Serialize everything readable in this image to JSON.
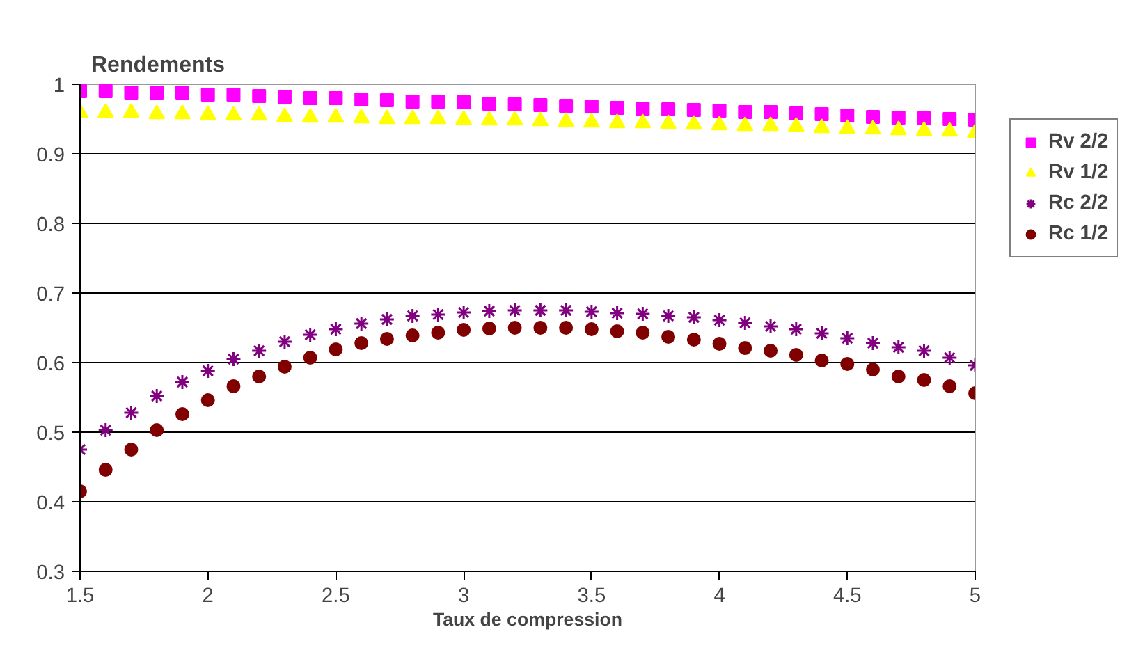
{
  "chart_data": {
    "type": "scatter",
    "title": "Rendements",
    "xlabel": "Taux de compression",
    "x": [
      1.5,
      1.6,
      1.7,
      1.8,
      1.9,
      2.0,
      2.1,
      2.2,
      2.3,
      2.4,
      2.5,
      2.6,
      2.7,
      2.8,
      2.9,
      3.0,
      3.1,
      3.2,
      3.3,
      3.4,
      3.5,
      3.6,
      3.7,
      3.8,
      3.9,
      4.0,
      4.1,
      4.2,
      4.3,
      4.4,
      4.5,
      4.6,
      4.7,
      4.8,
      4.9,
      5.0
    ],
    "series": [
      {
        "name": "Rv 2/2",
        "color": "#ff00ff",
        "marker": "square",
        "values": [
          0.99,
          0.99,
          0.988,
          0.988,
          0.988,
          0.985,
          0.985,
          0.983,
          0.982,
          0.98,
          0.98,
          0.978,
          0.977,
          0.975,
          0.975,
          0.974,
          0.972,
          0.971,
          0.97,
          0.969,
          0.968,
          0.966,
          0.965,
          0.964,
          0.963,
          0.962,
          0.96,
          0.96,
          0.958,
          0.957,
          0.955,
          0.953,
          0.952,
          0.951,
          0.95,
          0.949
        ]
      },
      {
        "name": "Rv 1/2",
        "color": "#ffff00",
        "marker": "triangle",
        "values": [
          0.959,
          0.959,
          0.959,
          0.957,
          0.957,
          0.956,
          0.955,
          0.955,
          0.953,
          0.952,
          0.952,
          0.951,
          0.95,
          0.95,
          0.95,
          0.949,
          0.948,
          0.948,
          0.947,
          0.946,
          0.945,
          0.944,
          0.944,
          0.943,
          0.942,
          0.941,
          0.94,
          0.94,
          0.939,
          0.937,
          0.936,
          0.935,
          0.934,
          0.933,
          0.932,
          0.93
        ]
      },
      {
        "name": "Rc 2/2",
        "color": "#800080",
        "marker": "cross",
        "values": [
          0.475,
          0.503,
          0.528,
          0.552,
          0.572,
          0.588,
          0.605,
          0.617,
          0.63,
          0.64,
          0.648,
          0.656,
          0.662,
          0.667,
          0.669,
          0.672,
          0.674,
          0.675,
          0.675,
          0.675,
          0.673,
          0.671,
          0.67,
          0.667,
          0.665,
          0.661,
          0.657,
          0.652,
          0.648,
          0.642,
          0.635,
          0.628,
          0.622,
          0.617,
          0.607,
          0.596
        ]
      },
      {
        "name": "Rc 1/2",
        "color": "#800000",
        "marker": "circle",
        "values": [
          0.415,
          0.446,
          0.475,
          0.503,
          0.526,
          0.546,
          0.566,
          0.58,
          0.594,
          0.607,
          0.619,
          0.628,
          0.634,
          0.639,
          0.643,
          0.647,
          0.649,
          0.65,
          0.65,
          0.65,
          0.648,
          0.645,
          0.643,
          0.637,
          0.633,
          0.627,
          0.621,
          0.617,
          0.611,
          0.603,
          0.598,
          0.59,
          0.58,
          0.575,
          0.566,
          0.556
        ]
      }
    ],
    "xlim": [
      1.5,
      5
    ],
    "ylim": [
      0.3,
      1
    ],
    "xticks": [
      1.5,
      2,
      2.5,
      3,
      3.5,
      4,
      4.5,
      5
    ],
    "yticks": [
      0.3,
      0.4,
      0.5,
      0.6,
      0.7,
      0.8,
      0.9,
      1
    ],
    "grid": "y",
    "legend": "right"
  }
}
